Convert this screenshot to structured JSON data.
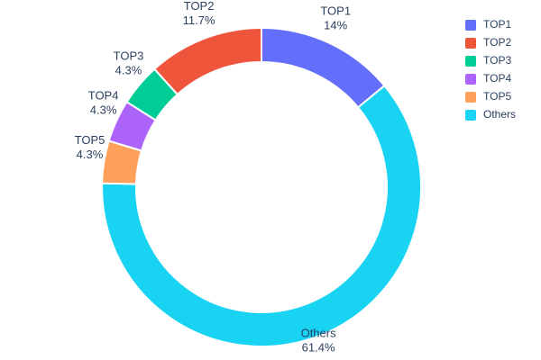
{
  "chart_data": {
    "type": "pie",
    "subtype": "donut",
    "title": "",
    "labels": [
      "TOP1",
      "TOP2",
      "TOP3",
      "TOP4",
      "TOP5",
      "Others"
    ],
    "values": [
      14,
      11.7,
      4.3,
      4.3,
      4.3,
      61.4
    ],
    "unit": "%",
    "percent_labels": [
      "14%",
      "11.7%",
      "4.3%",
      "4.3%",
      "4.3%",
      "61.4%"
    ],
    "colors": [
      "#636EFA",
      "#EF553B",
      "#00CC96",
      "#AB63FA",
      "#FFA15A",
      "#19D3F3"
    ],
    "hole": 0.785,
    "label_placement": "outside",
    "legend": {
      "position": "top-right",
      "entries": [
        "TOP1",
        "TOP2",
        "TOP3",
        "TOP4",
        "TOP5",
        "Others"
      ]
    },
    "draw_order_clockwise_from_top": [
      "TOP1",
      "Others",
      "TOP5",
      "TOP4",
      "TOP3",
      "TOP2"
    ],
    "text_color": "#2a3f5f",
    "background": "#ffffff"
  }
}
